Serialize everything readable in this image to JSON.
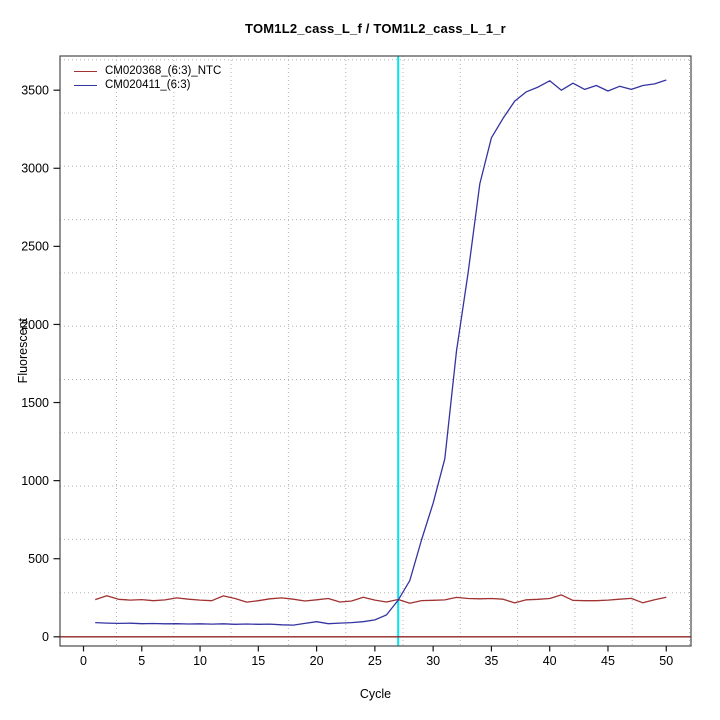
{
  "title": "TOM1L2_cass_L_f / TOM1L2_cass_L_1_r",
  "axes": {
    "xlabel": "Cycle",
    "ylabel": "Fluorescent"
  },
  "chart_data": {
    "type": "line",
    "title": "TOM1L2_cass_L_f / TOM1L2_cass_L_1_r",
    "xlabel": "Cycle",
    "ylabel": "Fluorescent",
    "x_ticks": [
      0,
      5,
      10,
      15,
      20,
      25,
      30,
      35,
      40,
      45,
      50
    ],
    "y_ticks": [
      0,
      500,
      1000,
      1500,
      2000,
      2500,
      3000,
      3500
    ],
    "xlim": [
      -2.0,
      52.1
    ],
    "ylim": [
      -60,
      3720
    ],
    "grid": {
      "on": true,
      "style": "dotted",
      "color": "#b4b4b4"
    },
    "legend_position": "top-left",
    "threshold_cycle_line": {
      "x": 27,
      "color": "#00e6ee"
    },
    "baseline": {
      "y": 0,
      "color": "#8f2424"
    },
    "x": [
      1,
      2,
      3,
      4,
      5,
      6,
      7,
      8,
      9,
      10,
      11,
      12,
      13,
      14,
      15,
      16,
      17,
      18,
      19,
      20,
      21,
      22,
      23,
      24,
      25,
      26,
      27,
      28,
      29,
      30,
      31,
      32,
      33,
      34,
      35,
      36,
      37,
      38,
      39,
      40,
      41,
      42,
      43,
      44,
      45,
      46,
      47,
      48,
      49,
      50
    ],
    "series": [
      {
        "name": "CM020368_(6:3)_NTC",
        "color": "#a03232",
        "values": [
          238,
          263,
          240,
          235,
          238,
          231,
          236,
          249,
          241,
          235,
          231,
          262,
          245,
          222,
          231,
          243,
          249,
          241,
          229,
          237,
          245,
          223,
          229,
          253,
          235,
          223,
          239,
          215,
          232,
          234,
          236,
          252,
          245,
          243,
          245,
          241,
          217,
          237,
          240,
          245,
          268,
          233,
          231,
          231,
          235,
          241,
          246,
          218,
          237,
          253
        ]
      },
      {
        "name": "CM020411_(6:3)",
        "color": "#3434a2",
        "values": [
          91,
          88,
          86,
          87,
          84,
          85,
          83,
          84,
          82,
          83,
          81,
          83,
          80,
          82,
          80,
          81,
          77,
          75,
          86,
          97,
          84,
          88,
          91,
          97,
          108,
          140,
          235,
          360,
          620,
          855,
          1140,
          1830,
          2330,
          2900,
          3195,
          3320,
          3430,
          3490,
          3520,
          3560,
          3500,
          3545,
          3505,
          3530,
          3495,
          3525,
          3505,
          3530,
          3540,
          3565
        ]
      }
    ]
  }
}
